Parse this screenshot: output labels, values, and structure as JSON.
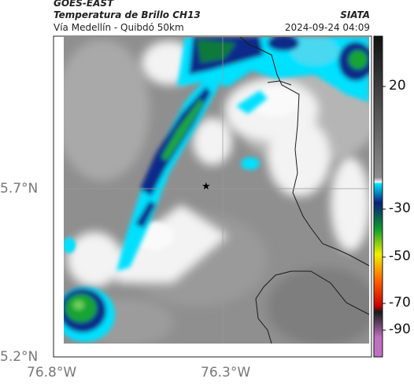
{
  "header": {
    "source": "GOES-EAST",
    "product": "Temperatura de Brillo CH13",
    "region": "Vía Medellín - Quibdó 50km",
    "organization": "SIATA",
    "datetime": "2024-09-24 04:09"
  },
  "map": {
    "lat_labels": [
      "5.7°N",
      "5.2°N"
    ],
    "lon_labels": [
      "76.8°W",
      "76.3°W"
    ],
    "marker_glyph": "★",
    "marker_icon": "star-icon"
  },
  "colorbar": {
    "ticks": [
      "20",
      "-30",
      "-50",
      "-70",
      "-90"
    ],
    "colors": [
      "#111111",
      "#8c8c8c",
      "#f5f5f5",
      "#00e4ff",
      "#0a1f7a",
      "#0a9a2e",
      "#f0f000",
      "#ff6600",
      "#cc0000",
      "#1a1a1a",
      "#c070c0"
    ]
  }
}
